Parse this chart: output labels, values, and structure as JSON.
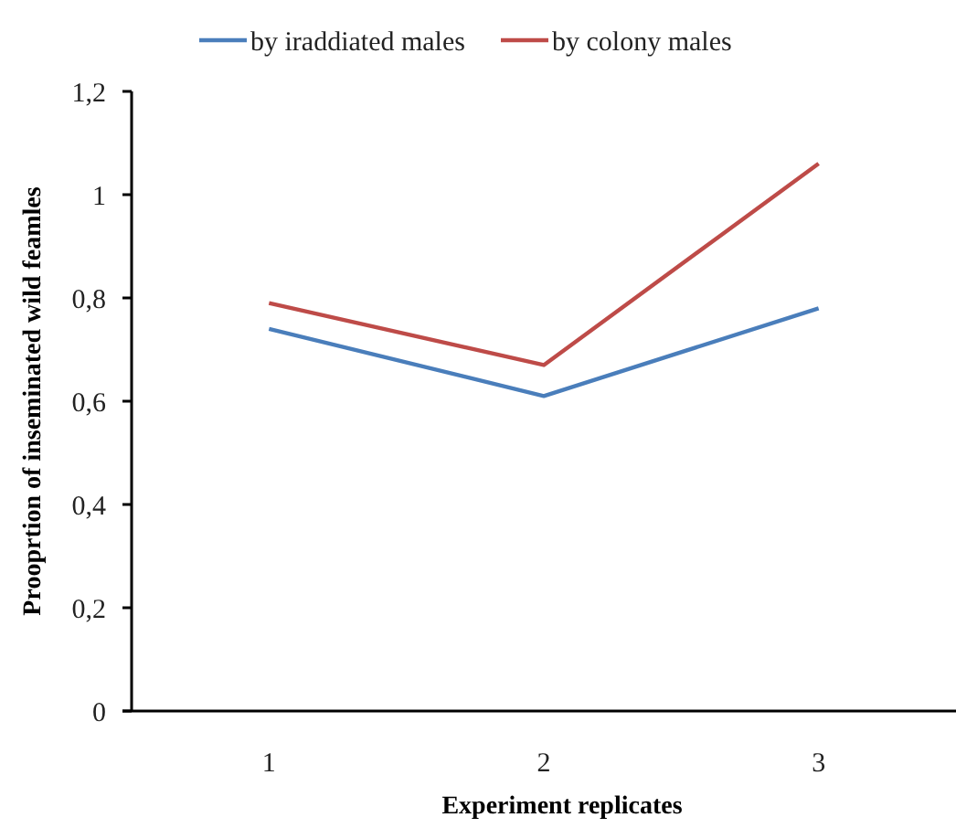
{
  "chart_data": {
    "type": "line",
    "xlabel": "Experiment replicates",
    "ylabel": "Prooprtion of inseminated wild feamles",
    "categories": [
      "1",
      "2",
      "3"
    ],
    "series": [
      {
        "name": "by iraddiated males",
        "color": "#4a7ebb",
        "values": [
          0.74,
          0.61,
          0.78
        ]
      },
      {
        "name": "by colony males",
        "color": "#be4b48",
        "values": [
          0.79,
          0.67,
          1.06
        ]
      }
    ],
    "ylim": [
      0,
      1.2
    ],
    "yticks": [
      0,
      {
        "value": 0.2,
        "label": "0,2"
      },
      {
        "value": 0.4,
        "label": "0,4"
      },
      {
        "value": 0.6,
        "label": "0,6"
      },
      {
        "value": 0.8,
        "label": "0,8"
      },
      1,
      {
        "value": 1.2,
        "label": "1,2"
      }
    ],
    "grid": false,
    "legend": "top",
    "marker": "none",
    "line_style": "solid"
  }
}
